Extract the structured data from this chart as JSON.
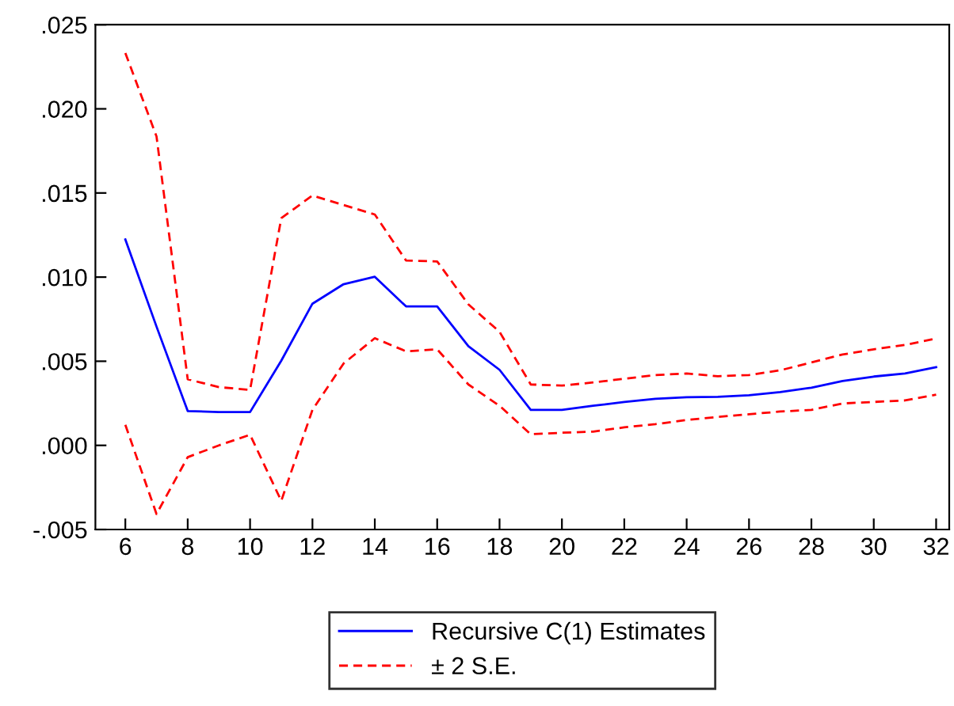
{
  "chart_data": {
    "type": "line",
    "x": [
      6,
      7,
      8,
      9,
      10,
      11,
      12,
      13,
      14,
      15,
      16,
      17,
      18,
      19,
      20,
      21,
      22,
      23,
      24,
      25,
      26,
      27,
      28,
      29,
      30,
      31,
      32
    ],
    "series": [
      {
        "name": "Recursive C(1) Estimates",
        "color": "#0000ff",
        "line_style": "solid",
        "values": [
          0.01224,
          0.00706,
          0.00204,
          0.00198,
          0.00198,
          0.00503,
          0.00842,
          0.00958,
          0.01002,
          0.00826,
          0.00826,
          0.0059,
          0.00449,
          0.00211,
          0.00211,
          0.00235,
          0.00258,
          0.00277,
          0.00286,
          0.00289,
          0.00298,
          0.00317,
          0.00343,
          0.00383,
          0.00409,
          0.00427,
          0.00465
        ]
      },
      {
        "name": "± 2 S.E.",
        "color": "#ff0000",
        "line_style": "dashed",
        "values": [
          0.02332,
          0.01836,
          0.00393,
          0.00346,
          0.0033,
          0.0135,
          0.01485,
          0.01428,
          0.01372,
          0.01099,
          0.01093,
          0.00838,
          0.00675,
          0.00362,
          0.00355,
          0.00374,
          0.00396,
          0.00418,
          0.00427,
          0.00411,
          0.00418,
          0.00446,
          0.00493,
          0.0054,
          0.00571,
          0.00597,
          0.00635
        ]
      },
      {
        "color": "#ff0000",
        "line_style": "dashed",
        "values": [
          0.00122,
          -0.00408,
          -0.0007,
          0.0,
          0.00063,
          -0.0033,
          0.00211,
          0.00487,
          0.00637,
          0.00559,
          0.00571,
          0.00362,
          0.00235,
          0.00066,
          0.00075,
          0.00082,
          0.00107,
          0.00126,
          0.00151,
          0.00169,
          0.00185,
          0.00201,
          0.00211,
          0.00249,
          0.00258,
          0.00267,
          0.00301
        ]
      }
    ],
    "xlim": [
      5.04,
      32.42
    ],
    "xticks": [
      6,
      8,
      10,
      12,
      14,
      16,
      18,
      20,
      22,
      24,
      26,
      28,
      30,
      32
    ],
    "ylim": [
      -0.005,
      0.025
    ],
    "yticks": [
      {
        "value": -0.005,
        "label": "-.005"
      },
      {
        "value": 0.0,
        "label": ".000"
      },
      {
        "value": 0.005,
        "label": ".005"
      },
      {
        "value": 0.01,
        "label": ".010"
      },
      {
        "value": 0.015,
        "label": ".015"
      },
      {
        "value": 0.02,
        "label": ".020"
      },
      {
        "value": 0.025,
        "label": ".025"
      }
    ],
    "legend": "bottom",
    "grid": false
  }
}
